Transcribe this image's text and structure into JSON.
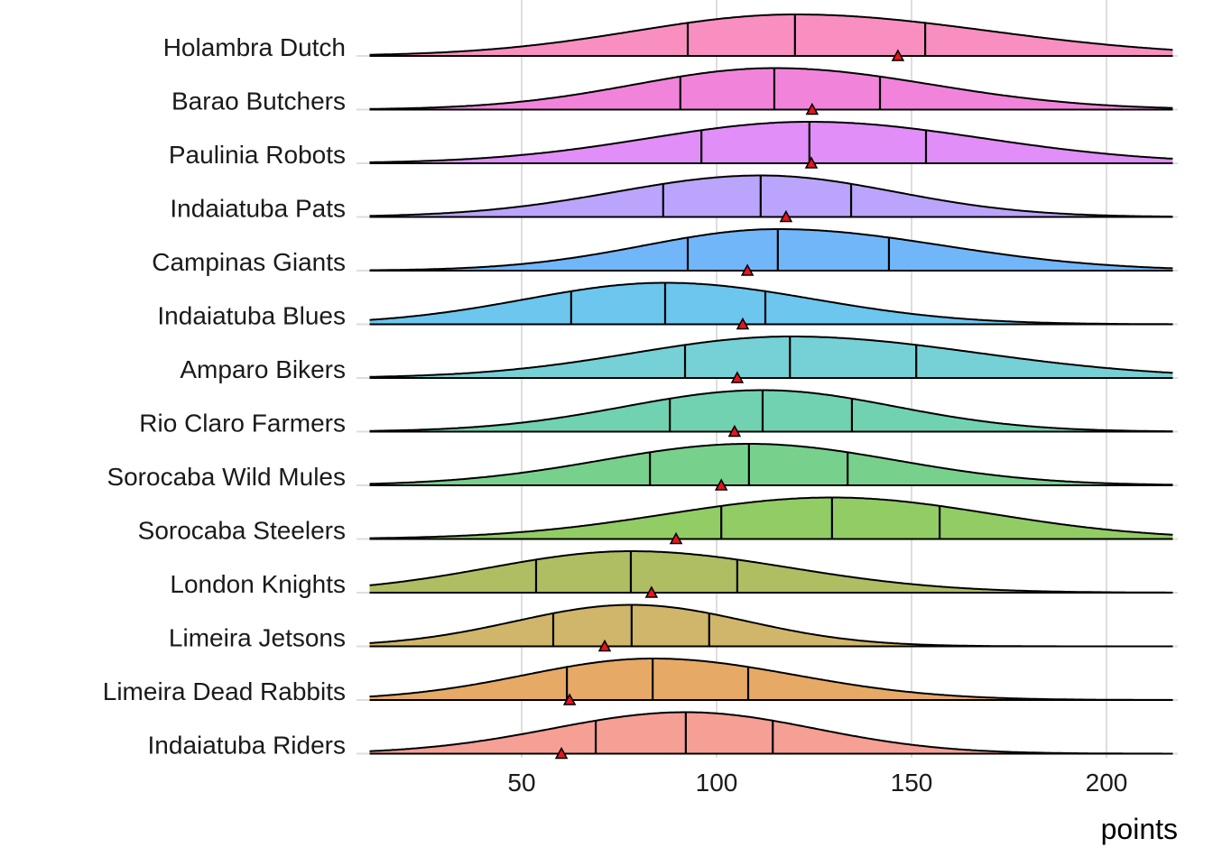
{
  "chart_data": {
    "type": "ridgeline",
    "title": "",
    "xlabel": "points",
    "ylabel": "",
    "xlim": [
      11,
      217
    ],
    "xticks": [
      50,
      100,
      150,
      200
    ],
    "grid": true,
    "legend": "none",
    "marker_note": "vertical lines = quartiles (25%, 50%, 75%); red triangle marker per team",
    "series": [
      {
        "name": "Holambra Dutch",
        "color": "#F98FC0",
        "q1": 92.6,
        "median": 120.1,
        "q3": 153.5,
        "marker": 146.5
      },
      {
        "name": "Barao Butchers",
        "color": "#F184DA",
        "q1": 90.7,
        "median": 114.8,
        "q3": 141.9,
        "marker": 124.5
      },
      {
        "name": "Paulinia Robots",
        "color": "#E18EF8",
        "q1": 96.1,
        "median": 123.8,
        "q3": 153.7,
        "marker": 124.3
      },
      {
        "name": "Indaiatuba Pats",
        "color": "#BBA4FB",
        "q1": 86.3,
        "median": 111.3,
        "q3": 134.5,
        "marker": 117.8
      },
      {
        "name": "Campinas Giants",
        "color": "#72B6FA",
        "q1": 92.6,
        "median": 115.7,
        "q3": 144.2,
        "marker": 107.9
      },
      {
        "name": "Indaiatuba Blues",
        "color": "#6CC6EE",
        "q1": 62.7,
        "median": 86.8,
        "q3": 112.5,
        "marker": 106.7
      },
      {
        "name": "Amparo Bikers",
        "color": "#75D1D5",
        "q1": 91.9,
        "median": 118.8,
        "q3": 151.2,
        "marker": 105.3
      },
      {
        "name": "Rio Claro Farmers",
        "color": "#70D2B0",
        "q1": 88.0,
        "median": 111.8,
        "q3": 134.7,
        "marker": 104.6
      },
      {
        "name": "Sorocaba Wild Mules",
        "color": "#77D18C",
        "q1": 82.9,
        "median": 108.3,
        "q3": 133.6,
        "marker": 101.2
      },
      {
        "name": "Sorocaba Steelers",
        "color": "#92CC65",
        "q1": 101.2,
        "median": 129.6,
        "q3": 157.2,
        "marker": 89.6
      },
      {
        "name": "London Knights",
        "color": "#AFBD63",
        "q1": 53.7,
        "median": 78.0,
        "q3": 105.3,
        "marker": 83.3
      },
      {
        "name": "Limeira Jetsons",
        "color": "#D0B66A",
        "q1": 58.1,
        "median": 78.2,
        "q3": 98.1,
        "marker": 71.3
      },
      {
        "name": "Limeira Dead Rabbits",
        "color": "#E6AA66",
        "q1": 61.6,
        "median": 83.6,
        "q3": 108.1,
        "marker": 62.3
      },
      {
        "name": "Indaiatuba Riders",
        "color": "#F59F95",
        "q1": 69.0,
        "median": 92.1,
        "q3": 114.4,
        "marker": 60.2
      }
    ]
  }
}
